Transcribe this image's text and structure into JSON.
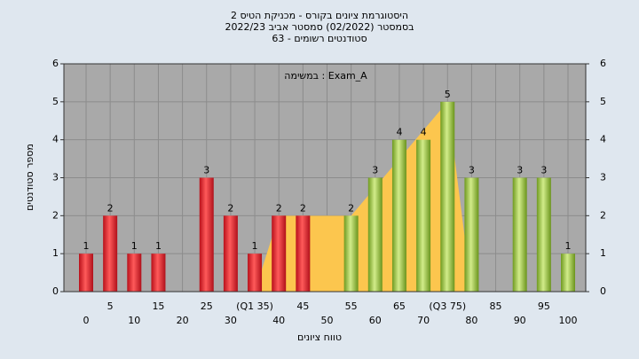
{
  "chart_data": {
    "type": "bar",
    "title": "היסטוגרמת ציונים בקורס - מכניקת הטיס 2",
    "subtitle": "בסמסטר  (02/2022)  סמסטר אביב 2022/23",
    "subtitle2": "סטודנטים רשומים - 63",
    "annotation": "במשימה : Exam_A",
    "xlabel": "טווח ציונים",
    "ylabel": "מספר סטודנטים",
    "categories": [
      "0",
      "5",
      "10",
      "15",
      "20",
      "25",
      "30",
      "(Q1 35)",
      "40",
      "45",
      "50",
      "55",
      "60",
      "65",
      "70",
      "(Q3 75)",
      "80",
      "85",
      "90",
      "95",
      "100"
    ],
    "values": [
      1,
      2,
      1,
      1,
      0,
      3,
      2,
      1,
      2,
      2,
      0,
      2,
      3,
      4,
      4,
      5,
      3,
      0,
      3,
      3,
      1
    ],
    "bar_colors": [
      "red",
      "red",
      "red",
      "red",
      "red",
      "red",
      "red",
      "red",
      "red",
      "red",
      "red",
      "green",
      "green",
      "green",
      "green",
      "green",
      "green",
      "green",
      "green",
      "green",
      "green"
    ],
    "area": {
      "x": [
        35,
        40,
        55,
        75,
        80
      ],
      "values": [
        0,
        2,
        2,
        5,
        0
      ],
      "color": "#fcc64e"
    },
    "ylim": [
      0,
      6
    ],
    "yticks": [
      0,
      1,
      2,
      3,
      4,
      5,
      6
    ],
    "y2lim": [
      0,
      6
    ],
    "y2ticks": [
      0,
      1,
      2,
      3,
      4,
      5,
      6
    ],
    "grid": true
  }
}
